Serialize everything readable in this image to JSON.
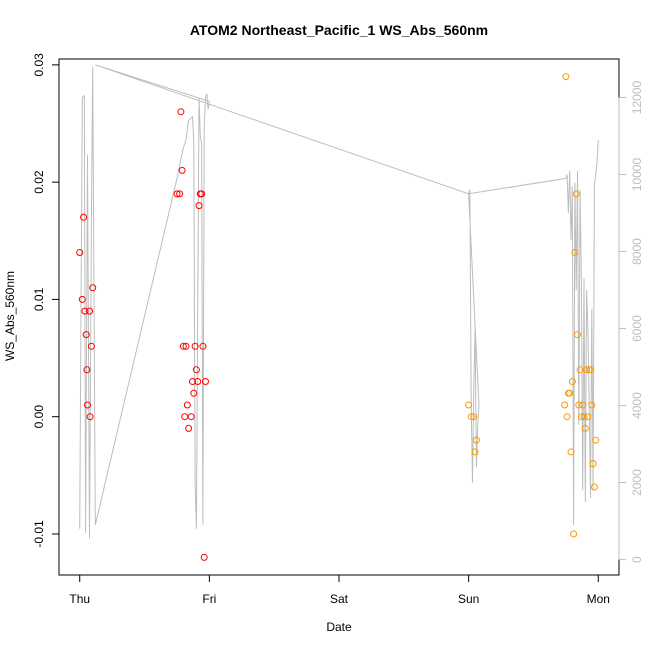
{
  "chart_data": {
    "type": "scatter",
    "title": "ATOM2 Northeast_Pacific_1 WS_Abs_560nm",
    "xlabel": "Date",
    "ylabel": "WS_Abs_560nm",
    "x_ticks": [
      "Thu",
      "Fri",
      "Sat",
      "Sun",
      "Mon"
    ],
    "y_ticks": [
      "-0.01",
      "0.00",
      "0.01",
      "0.02",
      "0.03"
    ],
    "y_tick_values": [
      -0.01,
      0.0,
      0.01,
      0.02,
      0.03
    ],
    "ylim": [
      -0.0135,
      0.0305
    ],
    "xlim": [
      -0.16,
      4.16
    ],
    "y2_ticks": [
      "0",
      "2000",
      "4000",
      "6000",
      "8000",
      "10000",
      "12000"
    ],
    "y2_tick_values": [
      0,
      2000,
      4000,
      6000,
      8000,
      10000,
      12000
    ],
    "y2lim": [
      -400,
      13000
    ],
    "grid": false,
    "x_unit": "days since Thursday 00:00",
    "series": [
      {
        "color": "#ff0000",
        "points": [
          [
            0.0,
            0.014
          ],
          [
            0.02,
            0.01
          ],
          [
            0.03,
            0.017
          ],
          [
            0.04,
            0.009
          ],
          [
            0.05,
            0.007
          ],
          [
            0.055,
            0.004
          ],
          [
            0.06,
            0.001
          ],
          [
            0.075,
            0.009
          ],
          [
            0.08,
            0.0
          ],
          [
            0.09,
            0.006
          ],
          [
            0.1,
            0.011
          ],
          [
            0.75,
            0.019
          ],
          [
            0.77,
            0.019
          ],
          [
            0.78,
            0.026
          ],
          [
            0.79,
            0.021
          ],
          [
            0.8,
            0.006
          ],
          [
            0.81,
            0.0
          ],
          [
            0.82,
            0.006
          ],
          [
            0.83,
            0.001
          ],
          [
            0.84,
            -0.001
          ],
          [
            0.86,
            0.0
          ],
          [
            0.87,
            0.003
          ],
          [
            0.88,
            0.002
          ],
          [
            0.89,
            0.006
          ],
          [
            0.9,
            0.004
          ],
          [
            0.91,
            0.003
          ],
          [
            0.92,
            0.018
          ],
          [
            0.93,
            0.019
          ],
          [
            0.94,
            0.019
          ],
          [
            0.95,
            0.006
          ],
          [
            0.96,
            -0.012
          ],
          [
            0.97,
            0.003
          ]
        ]
      },
      {
        "color": "#ff9900",
        "points": [
          [
            3.0,
            0.001
          ],
          [
            3.02,
            0.0
          ],
          [
            3.04,
            0.0
          ],
          [
            3.05,
            -0.003
          ],
          [
            3.06,
            -0.002
          ],
          [
            3.75,
            0.029
          ],
          [
            3.74,
            0.001
          ],
          [
            3.76,
            0.0
          ],
          [
            3.77,
            0.002
          ],
          [
            3.78,
            0.002
          ],
          [
            3.79,
            -0.003
          ],
          [
            3.8,
            0.003
          ],
          [
            3.81,
            -0.01
          ],
          [
            3.82,
            0.014
          ],
          [
            3.83,
            0.019
          ],
          [
            3.84,
            0.007
          ],
          [
            3.85,
            0.001
          ],
          [
            3.86,
            0.004
          ],
          [
            3.87,
            0.0
          ],
          [
            3.88,
            0.001
          ],
          [
            3.89,
            0.0
          ],
          [
            3.9,
            -0.001
          ],
          [
            3.91,
            0.004
          ],
          [
            3.92,
            0.0
          ],
          [
            3.93,
            0.004
          ],
          [
            3.94,
            0.004
          ],
          [
            3.95,
            0.001
          ],
          [
            3.96,
            -0.004
          ],
          [
            3.97,
            -0.006
          ],
          [
            3.98,
            -0.002
          ]
        ]
      }
    ],
    "depth_line": {
      "color": "#bdbdbd",
      "points": [
        [
          0.0,
          800
        ],
        [
          0.02,
          12000
        ],
        [
          0.035,
          12050
        ],
        [
          0.045,
          700
        ],
        [
          0.06,
          10500
        ],
        [
          0.075,
          550
        ],
        [
          0.09,
          8800
        ],
        [
          0.1,
          12800
        ],
        [
          0.12,
          900
        ],
        [
          0.75,
          9900
        ],
        [
          0.78,
          10400
        ],
        [
          0.8,
          10700
        ],
        [
          0.82,
          10900
        ],
        [
          0.84,
          11400
        ],
        [
          0.87,
          11500
        ],
        [
          0.88,
          10800
        ],
        [
          0.89,
          2000
        ],
        [
          0.9,
          800
        ],
        [
          0.92,
          12000
        ],
        [
          0.93,
          11000
        ],
        [
          0.94,
          10800
        ],
        [
          0.95,
          900
        ],
        [
          0.96,
          11200
        ],
        [
          0.97,
          12000
        ],
        [
          0.98,
          12100
        ],
        [
          0.99,
          11700
        ],
        [
          1.0,
          11900
        ],
        [
          0.12,
          12850
        ],
        [
          3.0,
          9500
        ],
        [
          3.01,
          9600
        ],
        [
          3.02,
          4000
        ],
        [
          3.03,
          2000
        ],
        [
          3.04,
          4500
        ],
        [
          3.05,
          6000
        ],
        [
          3.06,
          2400
        ],
        [
          3.07,
          3500
        ],
        [
          3.08,
          4000
        ],
        [
          3.0,
          9500
        ],
        [
          3.75,
          9900
        ],
        [
          3.76,
          10000
        ],
        [
          3.77,
          9000
        ],
        [
          3.78,
          10100
        ],
        [
          3.79,
          8300
        ],
        [
          3.8,
          9700
        ],
        [
          3.81,
          900
        ],
        [
          3.82,
          9800
        ],
        [
          3.83,
          7000
        ],
        [
          3.84,
          10100
        ],
        [
          3.85,
          3500
        ],
        [
          3.86,
          9600
        ],
        [
          3.87,
          7200
        ],
        [
          3.88,
          1800
        ],
        [
          3.89,
          7300
        ],
        [
          3.9,
          1500
        ],
        [
          3.91,
          7000
        ],
        [
          3.92,
          6000
        ],
        [
          3.93,
          4000
        ],
        [
          3.94,
          1600
        ],
        [
          3.95,
          6500
        ],
        [
          3.96,
          1800
        ],
        [
          3.97,
          9700
        ],
        [
          3.98,
          10000
        ],
        [
          3.99,
          10300
        ],
        [
          4.0,
          10900
        ]
      ]
    }
  }
}
